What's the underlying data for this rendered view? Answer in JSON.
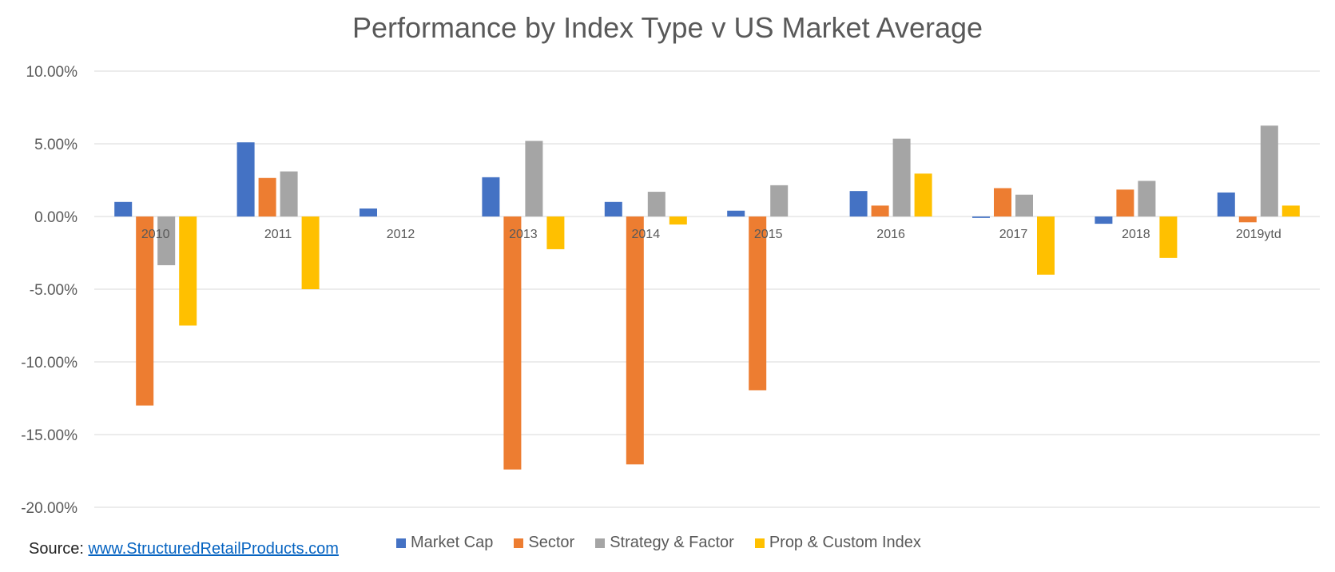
{
  "chart_data": {
    "type": "bar",
    "title": "Performance by Index Type v US Market Average",
    "categories": [
      "2010",
      "2011",
      "2012",
      "2013",
      "2014",
      "2015",
      "2016",
      "2017",
      "2018",
      "2019ytd"
    ],
    "ylim": [
      -20,
      10
    ],
    "yticks": [
      10,
      5,
      0,
      -5,
      -10,
      -15,
      -20
    ],
    "ytick_labels": [
      "10.00%",
      "5.00%",
      "0.00%",
      "-5.00%",
      "-10.00%",
      "-15.00%",
      "-20.00%"
    ],
    "grid": true,
    "legend_position": "bottom",
    "series": [
      {
        "name": "Market Cap",
        "color": "#4472c4",
        "values": [
          1.0,
          5.1,
          0.55,
          2.7,
          1.0,
          0.4,
          1.75,
          -0.1,
          -0.5,
          1.65
        ]
      },
      {
        "name": "Sector",
        "color": "#ed7d31",
        "values": [
          -13.0,
          2.65,
          null,
          -17.4,
          -17.05,
          -11.95,
          0.75,
          1.95,
          1.85,
          -0.4
        ]
      },
      {
        "name": "Strategy & Factor",
        "color": "#a5a5a5",
        "values": [
          -3.35,
          3.1,
          null,
          5.2,
          1.7,
          2.15,
          5.35,
          1.5,
          2.45,
          6.25
        ]
      },
      {
        "name": "Prop & Custom Index",
        "color": "#ffc000",
        "values": [
          -7.5,
          -5.0,
          null,
          -2.25,
          -0.55,
          null,
          2.95,
          -4.0,
          -2.85,
          0.75
        ]
      }
    ]
  },
  "source": {
    "prefix": "Source: ",
    "link_text": "www.StructuredRetailProducts.com"
  }
}
